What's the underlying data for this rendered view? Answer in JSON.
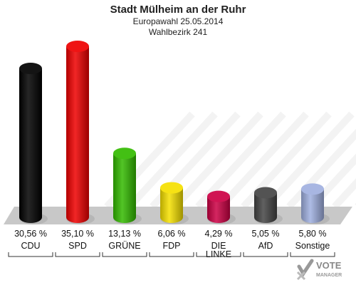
{
  "title": "Stadt Mülheim an der Ruhr",
  "subtitle": "Europawahl 25.05.2014",
  "subtitle2": "Wahlbezirk 241",
  "logo": {
    "line1": "VOTE",
    "line2": "MANAGER"
  },
  "chart_data": {
    "type": "bar",
    "title": "Stadt Mülheim an der Ruhr",
    "categories": [
      "CDU",
      "SPD",
      "GRÜNE",
      "FDP",
      "DIE LINKE",
      "AfD",
      "Sonstige"
    ],
    "category_lines": [
      [
        "CDU"
      ],
      [
        "SPD"
      ],
      [
        "GRÜNE"
      ],
      [
        "FDP"
      ],
      [
        "DIE",
        "LINKE"
      ],
      [
        "AfD"
      ],
      [
        "Sonstige"
      ]
    ],
    "values": [
      30.56,
      35.1,
      13.13,
      6.06,
      4.29,
      5.05,
      5.8
    ],
    "value_labels": [
      "30,56 %",
      "35,10 %",
      "13,13 %",
      "6,06 %",
      "4,29 %",
      "5,05 %",
      "5,80 %"
    ],
    "colors": [
      "#000000",
      "#ee0000",
      "#33bb00",
      "#f5e000",
      "#cc0044",
      "#444444",
      "#a0b0e0"
    ],
    "xlabel": "",
    "ylabel": "",
    "ylim": [
      0,
      35.1
    ],
    "grid": false
  }
}
